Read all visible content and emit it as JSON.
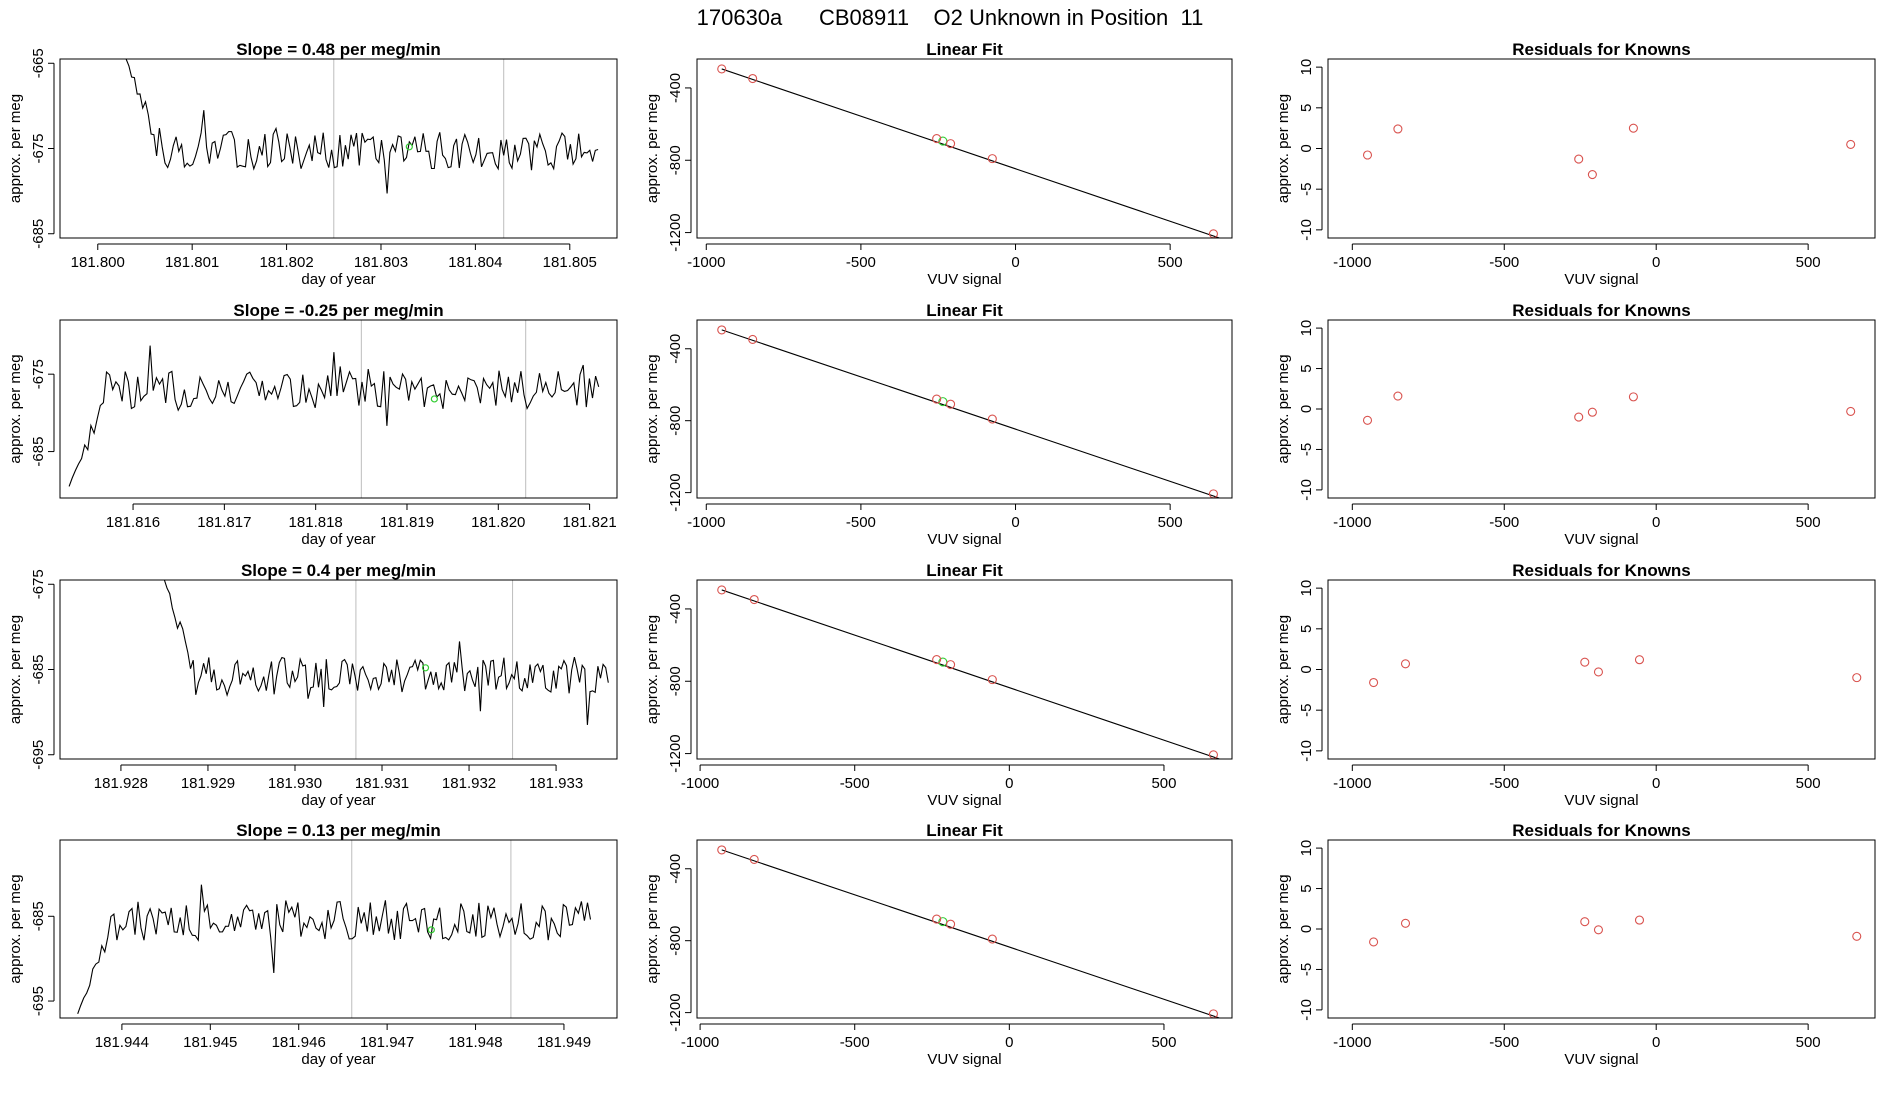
{
  "page": {
    "title": "170630a      CB08911    O2 Unknown in Position  11"
  },
  "colors": {
    "trace": "#000000",
    "guide_line": "#bdbdbd",
    "known_points": "#d9534f",
    "unknown_point": "#33cc33",
    "fit_line": "#000000"
  },
  "chart_data": [
    {
      "type": "line",
      "title": "Slope =  0.48  per meg/min",
      "xlabel": "day of year",
      "ylabel": "approx. per meg",
      "xlim": [
        181.7996,
        181.8055
      ],
      "ylim": [
        -685.5,
        -664.5
      ],
      "xticks": [
        181.8,
        181.801,
        181.802,
        181.803,
        181.804,
        181.805
      ],
      "xtick_labels": [
        "181.800",
        "181.801",
        "181.802",
        "181.803",
        "181.804",
        "181.805"
      ],
      "yticks": [
        -665,
        -675,
        -685
      ],
      "ytick_labels": [
        "-665",
        "-675",
        "-685"
      ],
      "guide_lines_x": [
        181.8025,
        181.8043
      ],
      "trace_x_range": [
        181.8003,
        181.8053
      ],
      "trace_level": -675.2,
      "trace_noise": 2.2,
      "trace_start_y": -664.5,
      "unknown_point": {
        "x": 181.8033,
        "y": -674.8
      }
    },
    {
      "type": "scatter",
      "title": "Linear Fit",
      "xlabel": "VUV signal",
      "ylabel": "approx. per meg",
      "xlim": [
        -1030,
        700
      ],
      "ylim": [
        -1230,
        -240
      ],
      "xticks": [
        -1000,
        -500,
        0,
        500
      ],
      "xtick_labels": [
        "-1000",
        "-500",
        "0",
        "500"
      ],
      "yticks": [
        -400,
        -800,
        -1200
      ],
      "ytick_labels": [
        "-400",
        "-800",
        "-1200"
      ],
      "fit_line": {
        "x": [
          -950,
          685
        ],
        "y": [
          -295,
          -1245
        ]
      },
      "known": {
        "x": [
          -950,
          -850,
          -255,
          -210,
          -75,
          640
        ],
        "y": [
          -295,
          -348,
          -680,
          -708,
          -791,
          -1207
        ]
      },
      "unknown": {
        "x": -235,
        "y": -694
      }
    },
    {
      "type": "scatter",
      "title": "Residuals for Knowns",
      "xlabel": "VUV signal",
      "ylabel": "approx. per meg",
      "xlim": [
        -1080,
        720
      ],
      "ylim": [
        -11,
        11
      ],
      "xticks": [
        -1000,
        -500,
        0,
        500
      ],
      "xtick_labels": [
        "-1000",
        "-500",
        "0",
        "500"
      ],
      "yticks": [
        10,
        5,
        0,
        -5,
        -10
      ],
      "ytick_labels": [
        "10",
        "5",
        "0",
        "-5",
        "-10"
      ],
      "known": {
        "x": [
          -950,
          -850,
          -255,
          -210,
          -75,
          640
        ],
        "y": [
          -0.8,
          2.4,
          -1.3,
          -3.2,
          2.5,
          0.5
        ]
      }
    },
    {
      "type": "line",
      "title": "Slope =  -0.25  per meg/min",
      "xlabel": "day of year",
      "ylabel": "approx. per meg",
      "xlim": [
        181.8152,
        181.8213
      ],
      "ylim": [
        -691,
        -668
      ],
      "xticks": [
        181.816,
        181.817,
        181.818,
        181.819,
        181.82,
        181.821
      ],
      "xtick_labels": [
        "181.816",
        "181.817",
        "181.818",
        "181.819",
        "181.820",
        "181.821"
      ],
      "yticks": [
        -675,
        -685
      ],
      "ytick_labels": [
        "-675",
        "-685"
      ],
      "guide_lines_x": [
        181.8185,
        181.8203
      ],
      "trace_x_range": [
        181.8153,
        181.8211
      ],
      "trace_level": -677.0,
      "trace_noise": 2.5,
      "trace_start_y": -689.5,
      "unknown_point": {
        "x": 181.8193,
        "y": -678.2
      }
    },
    {
      "type": "scatter",
      "title": "Linear Fit",
      "xlabel": "VUV signal",
      "ylabel": "approx. per meg",
      "xlim": [
        -1030,
        700
      ],
      "ylim": [
        -1230,
        -240
      ],
      "xticks": [
        -1000,
        -500,
        0,
        500
      ],
      "xtick_labels": [
        "-1000",
        "-500",
        "0",
        "500"
      ],
      "yticks": [
        -400,
        -800,
        -1200
      ],
      "ytick_labels": [
        "-400",
        "-800",
        "-1200"
      ],
      "fit_line": {
        "x": [
          -950,
          685
        ],
        "y": [
          -295,
          -1245
        ]
      },
      "known": {
        "x": [
          -950,
          -850,
          -255,
          -210,
          -75,
          640
        ],
        "y": [
          -295,
          -348,
          -680,
          -708,
          -791,
          -1207
        ]
      },
      "unknown": {
        "x": -235,
        "y": -694
      }
    },
    {
      "type": "scatter",
      "title": "Residuals for Knowns",
      "xlabel": "VUV signal",
      "ylabel": "approx. per meg",
      "xlim": [
        -1080,
        720
      ],
      "ylim": [
        -11,
        11
      ],
      "xticks": [
        -1000,
        -500,
        0,
        500
      ],
      "xtick_labels": [
        "-1000",
        "-500",
        "0",
        "500"
      ],
      "yticks": [
        10,
        5,
        0,
        -5,
        -10
      ],
      "ytick_labels": [
        "10",
        "5",
        "0",
        "-5",
        "-10"
      ],
      "known": {
        "x": [
          -950,
          -850,
          -255,
          -210,
          -75,
          640
        ],
        "y": [
          -1.4,
          1.6,
          -1.0,
          -0.4,
          1.5,
          -0.3
        ]
      }
    },
    {
      "type": "line",
      "title": "Slope =  0.4  per meg/min",
      "xlabel": "day of year",
      "ylabel": "approx. per meg",
      "xlim": [
        181.9273,
        181.9337
      ],
      "ylim": [
        -695.5,
        -674.5
      ],
      "xticks": [
        181.928,
        181.929,
        181.93,
        181.931,
        181.932,
        181.933
      ],
      "xtick_labels": [
        "181.928",
        "181.929",
        "181.930",
        "181.931",
        "181.932",
        "181.933"
      ],
      "yticks": [
        -675,
        -685,
        -695
      ],
      "ytick_labels": [
        "-675",
        "-685",
        "-695"
      ],
      "guide_lines_x": [
        181.9307,
        181.9325
      ],
      "trace_x_range": [
        181.9285,
        181.9336
      ],
      "trace_level": -685.8,
      "trace_noise": 2.3,
      "trace_start_y": -674.5,
      "unknown_point": {
        "x": 181.9315,
        "y": -684.8
      }
    },
    {
      "type": "scatter",
      "title": "Linear Fit",
      "xlabel": "VUV signal",
      "ylabel": "approx. per meg",
      "xlim": [
        -1010,
        720
      ],
      "ylim": [
        -1230,
        -240
      ],
      "xticks": [
        -1000,
        -500,
        0,
        500
      ],
      "xtick_labels": [
        "-1000",
        "-500",
        "0",
        "500"
      ],
      "yticks": [
        -400,
        -800,
        -1200
      ],
      "ytick_labels": [
        "-400",
        "-800",
        "-1200"
      ],
      "fit_line": {
        "x": [
          -930,
          705
        ],
        "y": [
          -295,
          -1245
        ]
      },
      "known": {
        "x": [
          -930,
          -825,
          -235,
          -190,
          -55,
          660
        ],
        "y": [
          -295,
          -348,
          -680,
          -708,
          -791,
          -1207
        ]
      },
      "unknown": {
        "x": -215,
        "y": -694
      }
    },
    {
      "type": "scatter",
      "title": "Residuals for Knowns",
      "xlabel": "VUV signal",
      "ylabel": "approx. per meg",
      "xlim": [
        -1080,
        720
      ],
      "ylim": [
        -11,
        11
      ],
      "xticks": [
        -1000,
        -500,
        0,
        500
      ],
      "xtick_labels": [
        "-1000",
        "-500",
        "0",
        "500"
      ],
      "yticks": [
        10,
        5,
        0,
        -5,
        -10
      ],
      "ytick_labels": [
        "10",
        "5",
        "0",
        "-5",
        "-10"
      ],
      "known": {
        "x": [
          -930,
          -825,
          -235,
          -190,
          -55,
          660
        ],
        "y": [
          -1.6,
          0.7,
          0.9,
          -0.3,
          1.2,
          -1.0
        ]
      }
    },
    {
      "type": "line",
      "title": "Slope =  0.13  per meg/min",
      "xlabel": "day of year",
      "ylabel": "approx. per meg",
      "xlim": [
        181.9433,
        181.9496
      ],
      "ylim": [
        -697,
        -676
      ],
      "xticks": [
        181.944,
        181.945,
        181.946,
        181.947,
        181.948,
        181.949
      ],
      "xtick_labels": [
        "181.944",
        "181.945",
        "181.946",
        "181.947",
        "181.948",
        "181.949"
      ],
      "yticks": [
        -685,
        -695
      ],
      "ytick_labels": [
        "-685",
        "-695"
      ],
      "guide_lines_x": [
        181.9466,
        181.9484
      ],
      "trace_x_range": [
        181.9435,
        181.9493
      ],
      "trace_level": -685.5,
      "trace_noise": 2.4,
      "trace_start_y": -696.5,
      "unknown_point": {
        "x": 181.9475,
        "y": -686.6
      }
    },
    {
      "type": "scatter",
      "title": "Linear Fit",
      "xlabel": "VUV signal",
      "ylabel": "approx. per meg",
      "xlim": [
        -1010,
        720
      ],
      "ylim": [
        -1230,
        -240
      ],
      "xticks": [
        -1000,
        -500,
        0,
        500
      ],
      "xtick_labels": [
        "-1000",
        "-500",
        "0",
        "500"
      ],
      "yticks": [
        -400,
        -800,
        -1200
      ],
      "ytick_labels": [
        "-400",
        "-800",
        "-1200"
      ],
      "fit_line": {
        "x": [
          -930,
          705
        ],
        "y": [
          -295,
          -1245
        ]
      },
      "known": {
        "x": [
          -930,
          -825,
          -235,
          -190,
          -55,
          660
        ],
        "y": [
          -295,
          -348,
          -680,
          -708,
          -791,
          -1207
        ]
      },
      "unknown": {
        "x": -215,
        "y": -694
      }
    },
    {
      "type": "scatter",
      "title": "Residuals for Knowns",
      "xlabel": "VUV signal",
      "ylabel": "approx. per meg",
      "xlim": [
        -1080,
        720
      ],
      "ylim": [
        -11,
        11
      ],
      "xticks": [
        -1000,
        -500,
        0,
        500
      ],
      "xtick_labels": [
        "-1000",
        "-500",
        "0",
        "500"
      ],
      "yticks": [
        10,
        5,
        0,
        -5,
        -10
      ],
      "ytick_labels": [
        "10",
        "5",
        "0",
        "-5",
        "-10"
      ],
      "known": {
        "x": [
          -930,
          -825,
          -235,
          -190,
          -55,
          660
        ],
        "y": [
          -1.6,
          0.7,
          0.9,
          -0.1,
          1.1,
          -0.9
        ]
      }
    }
  ]
}
